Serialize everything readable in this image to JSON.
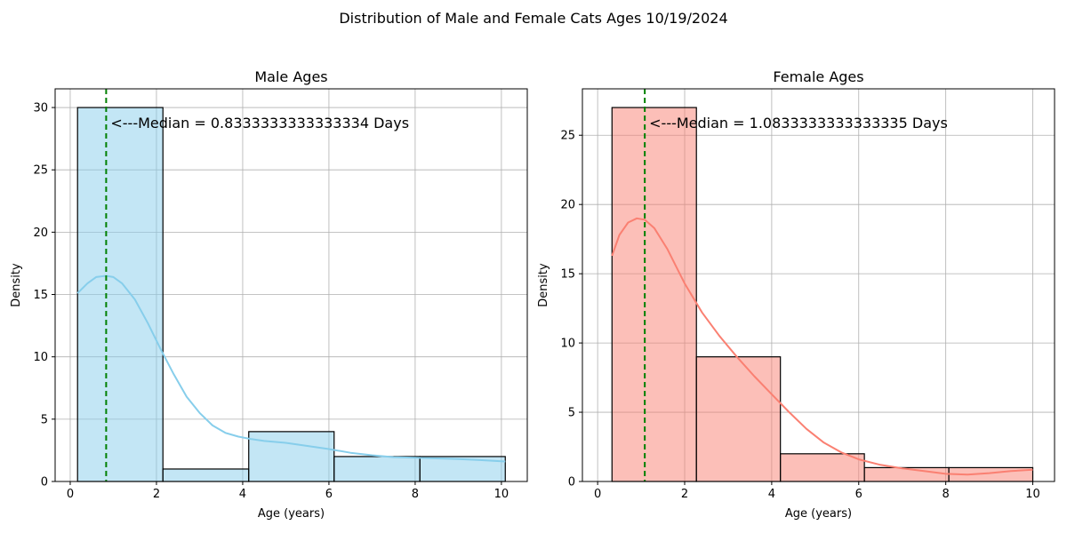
{
  "suptitle": "Distribution of Male and Female Cats Ages 10/19/2024",
  "chart_data": [
    {
      "type": "bar",
      "title": "Male Ages",
      "xlabel": "Age (years)",
      "ylabel": "Density",
      "xlim": [
        -0.35,
        10.6
      ],
      "ylim": [
        0,
        31.5
      ],
      "xticks": [
        0,
        2,
        4,
        6,
        8,
        10
      ],
      "yticks": [
        0,
        5,
        10,
        15,
        20,
        25,
        30
      ],
      "grid": true,
      "color": "#87ceeb",
      "bins": [
        {
          "x0": 0.17,
          "x1": 2.15,
          "value": 30
        },
        {
          "x0": 2.15,
          "x1": 4.14,
          "value": 1
        },
        {
          "x0": 4.14,
          "x1": 6.12,
          "value": 4
        },
        {
          "x0": 6.12,
          "x1": 8.11,
          "value": 2
        },
        {
          "x0": 8.11,
          "x1": 10.09,
          "value": 2
        }
      ],
      "kde": {
        "x": [
          0.17,
          0.4,
          0.6,
          0.83,
          1.0,
          1.2,
          1.5,
          1.8,
          2.1,
          2.4,
          2.7,
          3.0,
          3.3,
          3.6,
          3.9,
          4.2,
          4.5,
          5.0,
          5.5,
          6.0,
          6.5,
          7.0,
          7.5,
          8.0,
          8.5,
          9.0,
          9.5,
          10.09
        ],
        "y": [
          15.1,
          15.9,
          16.4,
          16.5,
          16.4,
          15.9,
          14.6,
          12.7,
          10.6,
          8.6,
          6.8,
          5.5,
          4.5,
          3.9,
          3.6,
          3.4,
          3.25,
          3.1,
          2.85,
          2.6,
          2.3,
          2.1,
          1.95,
          1.9,
          1.85,
          1.8,
          1.72,
          1.6
        ]
      },
      "median": 0.8333333333333334,
      "median_label": "<---Median = 0.8333333333333334 Days"
    },
    {
      "type": "bar",
      "title": "Female Ages",
      "xlabel": "Age (years)",
      "ylabel": "Density",
      "xlim": [
        -0.35,
        10.5
      ],
      "ylim": [
        0,
        28.35
      ],
      "xticks": [
        0,
        2,
        4,
        6,
        8,
        10
      ],
      "yticks": [
        0,
        5,
        10,
        15,
        20,
        25
      ],
      "grid": true,
      "color": "#fa8072",
      "bins": [
        {
          "x0": 0.33,
          "x1": 2.27,
          "value": 27
        },
        {
          "x0": 2.27,
          "x1": 4.2,
          "value": 9
        },
        {
          "x0": 4.2,
          "x1": 6.13,
          "value": 2
        },
        {
          "x0": 6.13,
          "x1": 8.07,
          "value": 1
        },
        {
          "x0": 8.07,
          "x1": 10.0,
          "value": 1
        }
      ],
      "kde": {
        "x": [
          0.33,
          0.5,
          0.7,
          0.9,
          1.08,
          1.3,
          1.6,
          2.0,
          2.4,
          2.8,
          3.2,
          3.6,
          4.0,
          4.4,
          4.8,
          5.2,
          5.6,
          6.0,
          6.5,
          7.0,
          7.5,
          8.0,
          8.5,
          9.0,
          9.5,
          10.0
        ],
        "y": [
          16.3,
          17.8,
          18.7,
          19.0,
          18.9,
          18.3,
          16.8,
          14.3,
          12.2,
          10.5,
          9.0,
          7.6,
          6.3,
          5.0,
          3.8,
          2.8,
          2.1,
          1.6,
          1.2,
          0.95,
          0.75,
          0.55,
          0.5,
          0.6,
          0.75,
          0.85
        ]
      },
      "median": 1.0833333333333335,
      "median_label": "<---Median = 1.0833333333333335 Days"
    }
  ]
}
